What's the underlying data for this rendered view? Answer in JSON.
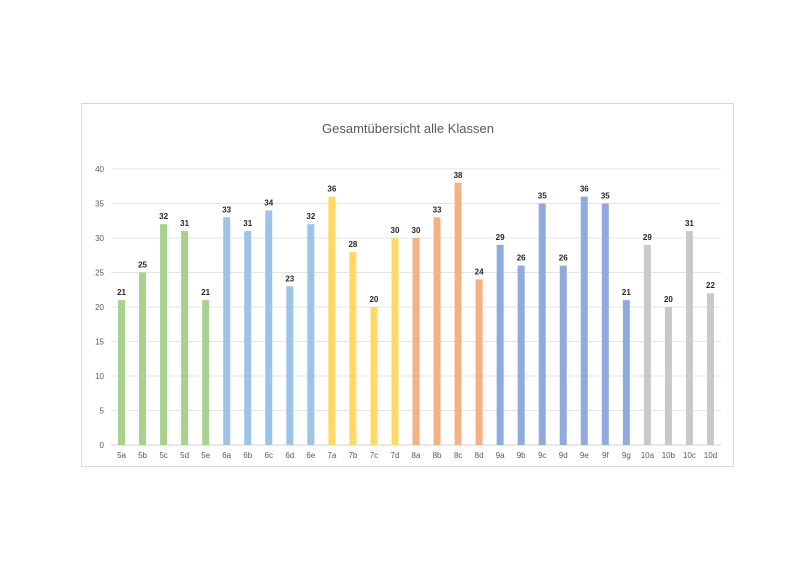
{
  "chart_data": {
    "type": "bar",
    "title": "Gesamtübersicht alle Klassen",
    "xlabel": "",
    "ylabel": "",
    "ylim": [
      0,
      40
    ],
    "yticks": [
      0,
      5,
      10,
      15,
      20,
      25,
      30,
      35,
      40
    ],
    "grid": true,
    "legend": "none",
    "categories": [
      "5a",
      "5b",
      "5c",
      "5d",
      "5e",
      "6a",
      "6b",
      "6c",
      "6d",
      "6e",
      "7a",
      "7b",
      "7c",
      "7d",
      "8a",
      "8b",
      "8c",
      "8d",
      "9a",
      "9b",
      "9c",
      "9d",
      "9e",
      "9f",
      "9g",
      "10a",
      "10b",
      "10c",
      "10d"
    ],
    "values": [
      21,
      25,
      32,
      31,
      21,
      33,
      31,
      34,
      23,
      32,
      36,
      28,
      20,
      30,
      30,
      33,
      38,
      24,
      29,
      26,
      35,
      26,
      36,
      35,
      21,
      29,
      20,
      31,
      22
    ],
    "group_colors": {
      "5": "#a9d18e",
      "6": "#9dc3e6",
      "7": "#ffd966",
      "8": "#f4b183",
      "9": "#8faadc",
      "10": "#c9c9c9"
    }
  }
}
